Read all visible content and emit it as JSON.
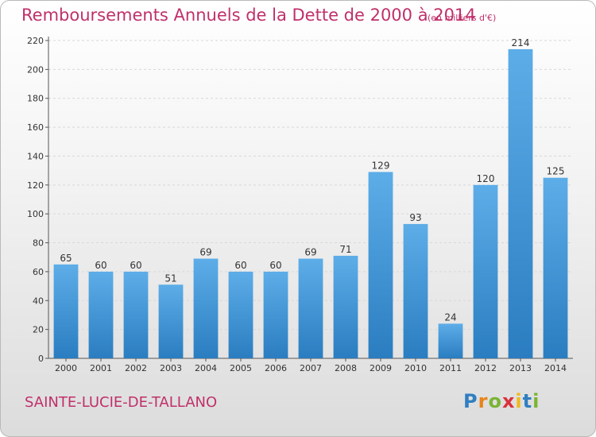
{
  "header": {
    "title": "Remboursements Annuels de la Dette de 2000 à 2014",
    "unit": "(en milliers d'€)"
  },
  "footer": {
    "commune": "SAINTE-LUCIE-DE-TALLANO",
    "logo": [
      "P",
      "r",
      "o",
      "x",
      "i",
      "t",
      "i"
    ]
  },
  "colors": {
    "bar_light": "#5dade8",
    "bar_dark": "#2a7dc0",
    "title": "#c0306a"
  },
  "chart_data": {
    "type": "bar",
    "title": "Remboursements Annuels de la Dette de 2000 à 2014",
    "xlabel": "",
    "ylabel": "",
    "categories": [
      "2000",
      "2001",
      "2002",
      "2003",
      "2004",
      "2005",
      "2006",
      "2007",
      "2008",
      "2009",
      "2010",
      "2011",
      "2012",
      "2013",
      "2014"
    ],
    "values": [
      65,
      60,
      60,
      51,
      69,
      60,
      60,
      69,
      71,
      129,
      93,
      24,
      120,
      214,
      125
    ],
    "ylim": [
      0,
      220
    ],
    "yticks": [
      0,
      20,
      40,
      60,
      80,
      100,
      120,
      140,
      160,
      180,
      200,
      220
    ],
    "grid": true,
    "data_labels": true
  }
}
